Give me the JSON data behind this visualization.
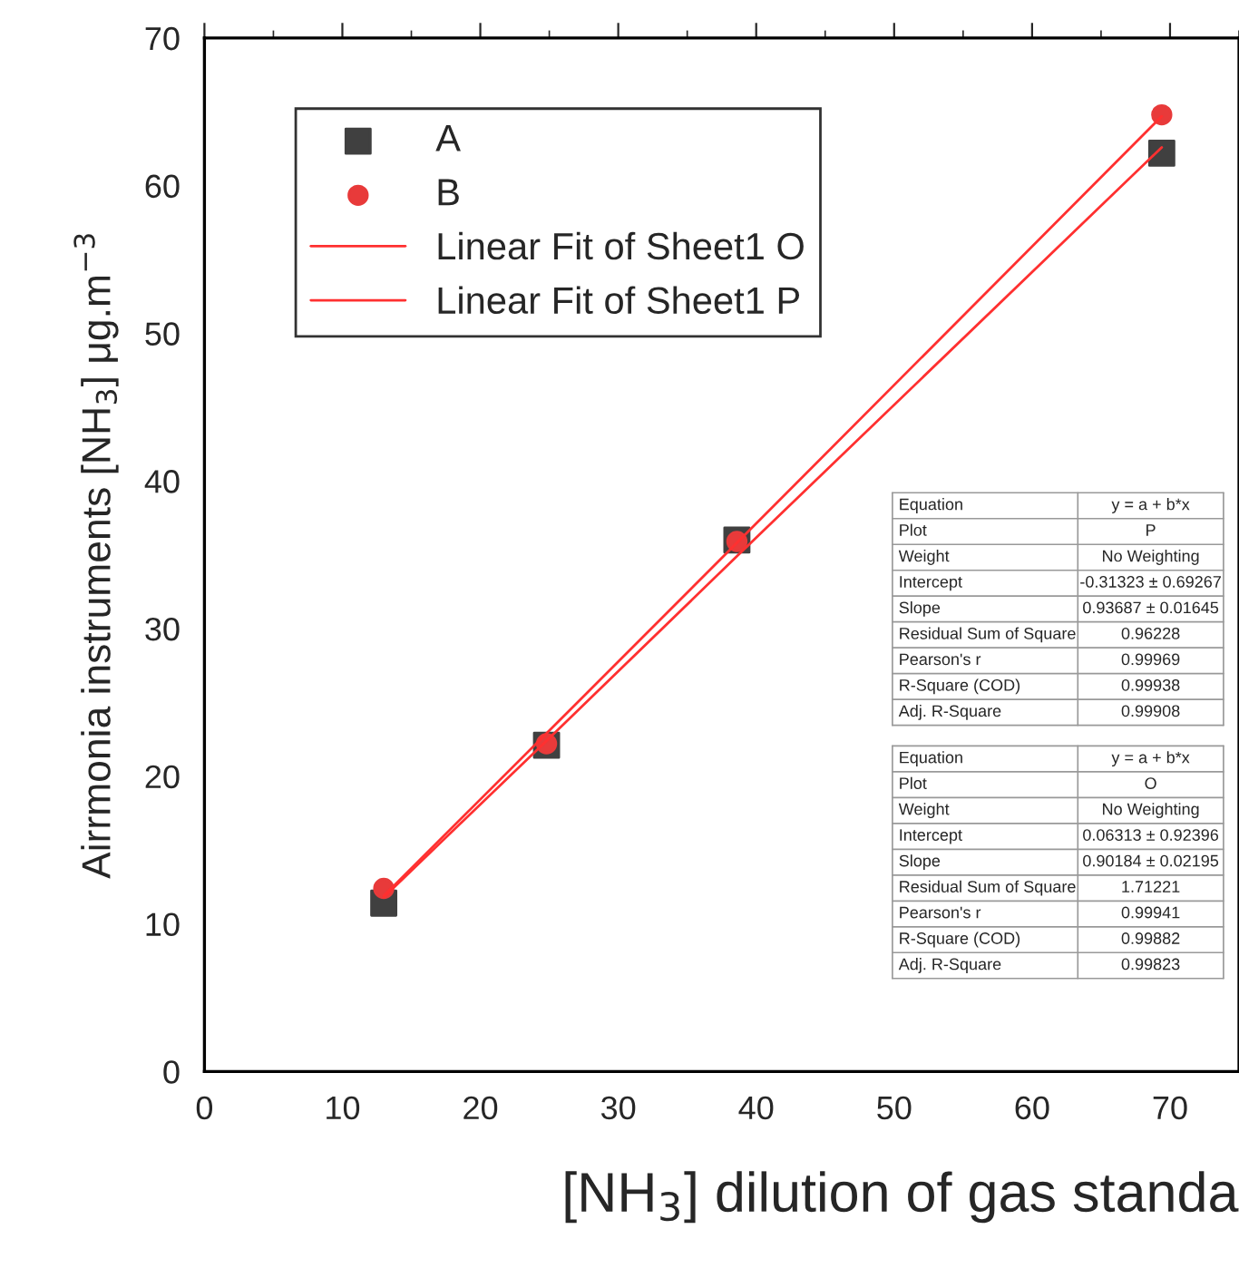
{
  "chart_data": {
    "type": "scatter",
    "xlabel": "[NH$_{3}$] dilution of gas standa",
    "ylabel": "Airrmonia instruments [NH$_{3}$] μg.m$^{−3}$",
    "xlim": [
      0,
      75
    ],
    "xticks": [
      0,
      10,
      20,
      30,
      40,
      50,
      60,
      70
    ],
    "ylim": [
      0,
      70
    ],
    "yticks": [
      0,
      10,
      20,
      30,
      40,
      50,
      60,
      70
    ],
    "x": [
      13,
      24.8,
      38.6,
      69.4
    ],
    "series": [
      {
        "name": "A",
        "type": "scatter",
        "marker": "square",
        "color": "#404040",
        "values": [
          11.4,
          22.1,
          36.0,
          62.2
        ]
      },
      {
        "name": "B",
        "marker": "circle",
        "color": "#e83a3a",
        "values": [
          12.4,
          22.2,
          35.9,
          64.8
        ]
      },
      {
        "name": "Linear Fit of Sheet1 O",
        "type": "line",
        "marker": "none",
        "color": "#ff3030",
        "values": [
          11.8,
          22.4,
          34.9,
          62.6
        ]
      },
      {
        "name": "Linear Fit of Sheet1 P",
        "type": "line",
        "marker": "none",
        "color": "#ff3030",
        "values": [
          11.9,
          22.9,
          35.8,
          64.7
        ]
      }
    ],
    "legend": "top left",
    "grid": false,
    "annotations": [
      "Equation",
      "y = a + b*x",
      "Plot",
      "P",
      "Weight",
      "No Weighting",
      "Intercept",
      "-0.31323 ± 0.69267",
      "Slope",
      "0.93687 ± 0.01645",
      "Residual Sum of Square",
      "0.96228",
      "Pearson's r",
      "0.99969",
      "R-Square (COD)",
      "0.99938",
      "Adj. R-Square",
      "0.99908",
      "Equation",
      "y = a + b*x",
      "Plot",
      "O",
      "Weight",
      "No Weighting",
      "Intercept",
      "0.06313 ± 0.92396",
      "Slope",
      "0.90184 ± 0.02195",
      "Residual Sum of Square",
      "1.71221",
      "Pearson's r",
      "0.99941",
      "R-Square (COD)",
      "0.99882",
      "Adj. R-Square",
      "0.99823"
    ]
  }
}
